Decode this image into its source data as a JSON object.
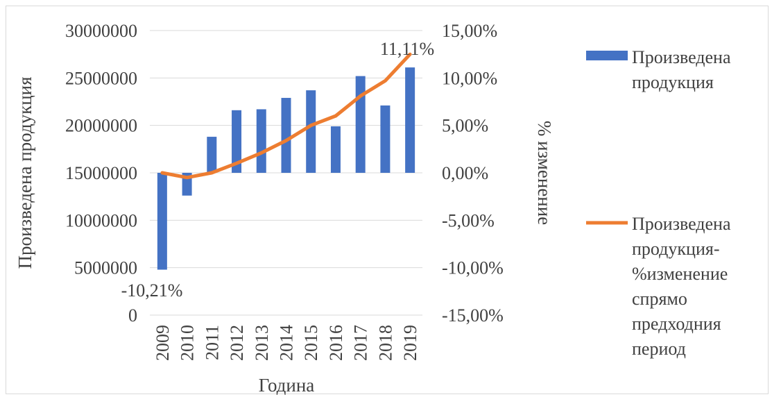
{
  "chart_data": {
    "type": "bar",
    "categories": [
      "2009",
      "2010",
      "2011",
      "2012",
      "2013",
      "2014",
      "2015",
      "2016",
      "2017",
      "2018",
      "2019"
    ],
    "series": [
      {
        "name": "Произведена продукция",
        "type": "bar",
        "axis": "left",
        "color": "#4472C4",
        "values": [
          -10.21,
          -2.4,
          3.8,
          6.6,
          6.7,
          7.9,
          8.7,
          4.9,
          10.2,
          7.1,
          11.11
        ]
      },
      {
        "name": "Произведена продукция-%изменение спрямо предходния период",
        "type": "line",
        "axis": "right",
        "color": "#ED7D31",
        "values": [
          0.0,
          -0.5,
          0.0,
          1.0,
          2.1,
          3.4,
          5.0,
          6.0,
          8.1,
          9.7,
          12.5
        ]
      }
    ],
    "left_axis": {
      "title": "Произведена продукция",
      "ticks": [
        "0",
        "5000000",
        "10000000",
        "15000000",
        "20000000",
        "25000000",
        "30000000"
      ]
    },
    "right_axis": {
      "title": "% изменение",
      "ticks": [
        "-15,00%",
        "-10,00%",
        "-5,00%",
        "0,00%",
        "5,00%",
        "10,00%",
        "15,00%"
      ],
      "ylim": [
        -15,
        15
      ]
    },
    "xlabel": "Година",
    "data_labels": [
      {
        "text": "-10,21%",
        "category": "2009"
      },
      {
        "text": "11,11%",
        "category": "2019"
      }
    ],
    "legend": {
      "position": "right",
      "bar_lines": [
        "Произведена",
        "продукция"
      ],
      "line_lines": [
        "Произведена",
        "продукция-",
        "%изменение",
        "спрямо",
        "предходния",
        "период"
      ]
    },
    "grid": true
  }
}
